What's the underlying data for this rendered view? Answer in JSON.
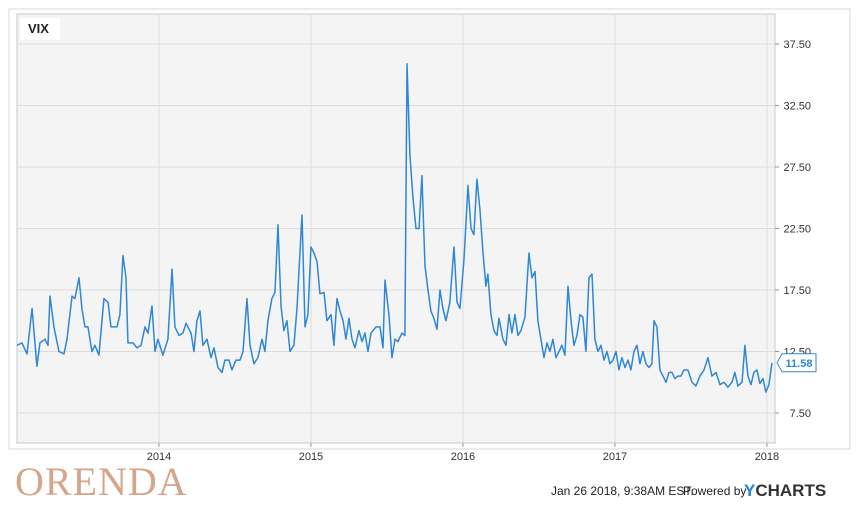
{
  "chart_data": {
    "type": "line",
    "x": [
      2013.066,
      2013.099,
      2013.132,
      2013.165,
      2013.197,
      2013.217,
      2013.25,
      2013.27,
      2013.283,
      2013.309,
      2013.342,
      2013.375,
      2013.395,
      2013.428,
      2013.447,
      2013.474,
      2013.493,
      2013.513,
      2013.533,
      2013.559,
      2013.579,
      2013.605,
      2013.638,
      2013.665,
      2013.684,
      2013.724,
      2013.743,
      2013.763,
      2013.783,
      2013.796,
      2013.829,
      2013.855,
      2013.882,
      2013.908,
      2013.928,
      2013.954,
      2013.974,
      2013.993,
      2014.026,
      2014.059,
      2014.086,
      2014.105,
      2014.132,
      2014.158,
      2014.178,
      2014.211,
      2014.23,
      2014.25,
      2014.27,
      2014.289,
      2014.316,
      2014.342,
      2014.362,
      2014.388,
      2014.415,
      2014.434,
      2014.461,
      2014.48,
      2014.507,
      2014.533,
      2014.553,
      2014.579,
      2014.599,
      2014.625,
      2014.651,
      2014.678,
      2014.697,
      2014.717,
      2014.743,
      2014.763,
      2014.783,
      2014.803,
      2014.822,
      2014.842,
      2014.862,
      2014.888,
      2014.908,
      2014.941,
      2014.961,
      2014.98,
      2015.0,
      2015.02,
      2015.04,
      2015.059,
      2015.086,
      2015.105,
      2015.132,
      2015.151,
      2015.171,
      2015.191,
      2015.211,
      2015.23,
      2015.25,
      2015.27,
      2015.289,
      2015.316,
      2015.336,
      2015.355,
      2015.375,
      2015.395,
      2015.428,
      2015.454,
      2015.474,
      2015.487,
      2015.513,
      2015.533,
      2015.553,
      2015.572,
      2015.599,
      2015.618,
      2015.632,
      2015.651,
      2015.671,
      2015.691,
      2015.711,
      2015.73,
      2015.75,
      2015.77,
      2015.789,
      2015.809,
      2015.829,
      2015.849,
      2015.868,
      2015.888,
      2015.914,
      2015.941,
      2015.961,
      2015.98,
      2016.007,
      2016.033,
      2016.053,
      2016.072,
      2016.092,
      2016.112,
      2016.132,
      2016.151,
      2016.164,
      2016.184,
      2016.204,
      2016.224,
      2016.237,
      2016.263,
      2016.283,
      2016.303,
      2016.322,
      2016.342,
      2016.362,
      2016.382,
      2016.408,
      2016.434,
      2016.454,
      2016.474,
      2016.493,
      2016.513,
      2016.533,
      2016.553,
      2016.572,
      2016.592,
      2016.612,
      2016.632,
      2016.651,
      2016.671,
      2016.691,
      2016.711,
      2016.73,
      2016.75,
      2016.77,
      2016.789,
      2016.809,
      2016.829,
      2016.849,
      2016.868,
      2016.888,
      2016.908,
      2016.928,
      2016.947,
      2016.967,
      2016.987,
      2017.007,
      2017.026,
      2017.046,
      2017.066,
      2017.086,
      2017.105,
      2017.125,
      2017.145,
      2017.164,
      2017.184,
      2017.204,
      2017.224,
      2017.243,
      2017.257,
      2017.276,
      2017.296,
      2017.316,
      2017.336,
      2017.355,
      2017.375,
      2017.395,
      2017.414,
      2017.434,
      2017.454,
      2017.48,
      2017.507,
      2017.533,
      2017.559,
      2017.586,
      2017.612,
      2017.638,
      2017.665,
      2017.691,
      2017.717,
      2017.743,
      2017.77,
      2017.789,
      2017.809,
      2017.836,
      2017.855,
      2017.875,
      2017.895,
      2017.914,
      2017.934,
      2017.954,
      2017.974,
      2017.993,
      2018.013,
      2018.033
    ],
    "series": [
      {
        "name": "VIX",
        "color": "#2e87d6",
        "values": [
          13.0,
          13.2,
          12.3,
          16.0,
          11.3,
          13.2,
          13.5,
          13.0,
          17.0,
          14.5,
          12.5,
          12.3,
          13.5,
          17.0,
          16.8,
          18.5,
          16.0,
          14.5,
          14.5,
          12.5,
          13.0,
          12.2,
          16.8,
          16.5,
          14.5,
          14.5,
          15.5,
          20.3,
          18.5,
          13.2,
          13.2,
          12.8,
          13.0,
          14.5,
          14.0,
          16.2,
          12.5,
          13.5,
          12.2,
          13.5,
          19.2,
          14.5,
          13.8,
          14.0,
          14.8,
          14.0,
          12.5,
          15.0,
          15.8,
          13.0,
          13.5,
          12.0,
          12.8,
          11.2,
          10.8,
          11.8,
          11.8,
          11.0,
          11.8,
          11.8,
          12.5,
          16.8,
          13.0,
          11.5,
          12.0,
          13.5,
          12.5,
          15.0,
          16.8,
          17.3,
          22.8,
          16.2,
          14.2,
          15.0,
          12.5,
          13.0,
          16.0,
          23.6,
          14.5,
          15.5,
          21.0,
          20.5,
          19.8,
          17.2,
          17.3,
          15.0,
          15.5,
          13.0,
          16.8,
          15.8,
          15.0,
          13.5,
          15.2,
          13.5,
          12.8,
          14.2,
          13.3,
          14.0,
          12.5,
          14.0,
          14.5,
          14.5,
          12.8,
          18.3,
          15.5,
          12.0,
          13.5,
          13.3,
          14.0,
          13.8,
          35.9,
          28.5,
          25.0,
          22.5,
          22.5,
          26.8,
          19.5,
          17.5,
          15.8,
          15.2,
          14.3,
          17.5,
          16.0,
          15.0,
          16.5,
          21.0,
          16.5,
          16.0,
          20.0,
          26.0,
          22.5,
          22.0,
          26.5,
          24.0,
          20.5,
          17.8,
          18.8,
          15.5,
          14.2,
          13.8,
          15.2,
          13.5,
          13.0,
          15.5,
          14.0,
          15.5,
          13.8,
          14.2,
          15.3,
          20.5,
          18.5,
          19.0,
          15.0,
          13.5,
          12.0,
          13.2,
          12.5,
          13.5,
          12.0,
          12.5,
          13.0,
          12.2,
          17.8,
          15.0,
          13.0,
          13.8,
          15.5,
          15.3,
          12.5,
          18.5,
          18.8,
          13.5,
          12.5,
          13.0,
          11.8,
          12.5,
          11.5,
          11.8,
          12.5,
          11.0,
          12.0,
          11.2,
          11.8,
          11.0,
          12.5,
          13.0,
          11.5,
          12.5,
          11.5,
          11.2,
          11.5,
          15.0,
          14.5,
          11.0,
          10.5,
          10.0,
          10.8,
          10.8,
          10.3,
          10.5,
          10.5,
          11.0,
          11.0,
          10.0,
          9.7,
          10.5,
          11.0,
          12.0,
          10.5,
          10.8,
          9.8,
          10.0,
          9.6,
          10.0,
          10.8,
          9.7,
          10.0,
          13.0,
          10.5,
          9.8,
          10.8,
          11.0,
          9.9,
          10.3,
          9.2,
          9.8,
          11.58
        ]
      }
    ],
    "last_value_label": "11.58",
    "xlim": [
      2013.066,
      2018.053
    ],
    "xticks": [
      2014,
      2015,
      2016,
      2017,
      2018
    ],
    "ylim": [
      5.06,
      39.94
    ],
    "yticks": [
      {
        "value": 7.5,
        "label": "7.50"
      },
      {
        "value": 12.5,
        "label": "12.50"
      },
      {
        "value": 17.5,
        "label": "17.50"
      },
      {
        "value": 22.5,
        "label": "22.50"
      },
      {
        "value": 27.5,
        "label": "27.50"
      },
      {
        "value": 32.5,
        "label": "32.50"
      },
      {
        "value": 37.5,
        "label": "37.50"
      }
    ],
    "grid": true,
    "timestamp": "Jan 26 2018, 9:38AM EST.",
    "powered_by": "Powered by",
    "brand": "YCHARTS",
    "watermark": "ORENDA"
  }
}
